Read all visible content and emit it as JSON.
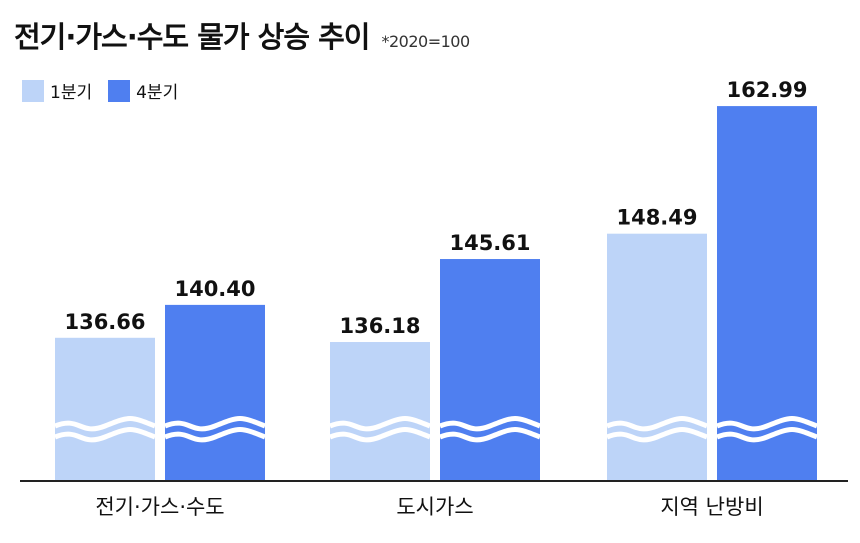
{
  "title": "전기·가스·수도 물가 상승 추이",
  "note": "*2020=100",
  "colors": {
    "q1": "#bdd4f8",
    "q4": "#4f7ff0",
    "axis": "#222222",
    "text": "#111111"
  },
  "chart_data": {
    "type": "bar",
    "categories": [
      "전기·가스·수도",
      "도시가스",
      "지역 난방비"
    ],
    "series": [
      {
        "name": "1분기",
        "values": [
          136.66,
          136.18,
          148.49
        ]
      },
      {
        "name": "4분기",
        "values": [
          140.4,
          145.61,
          162.99
        ]
      }
    ],
    "data_labels": [
      [
        "136.66",
        "140.40"
      ],
      [
        "136.18",
        "145.61"
      ],
      [
        "148.49",
        "162.99"
      ]
    ],
    "axis_break": true,
    "legend_position": "top-left",
    "grid": false
  }
}
